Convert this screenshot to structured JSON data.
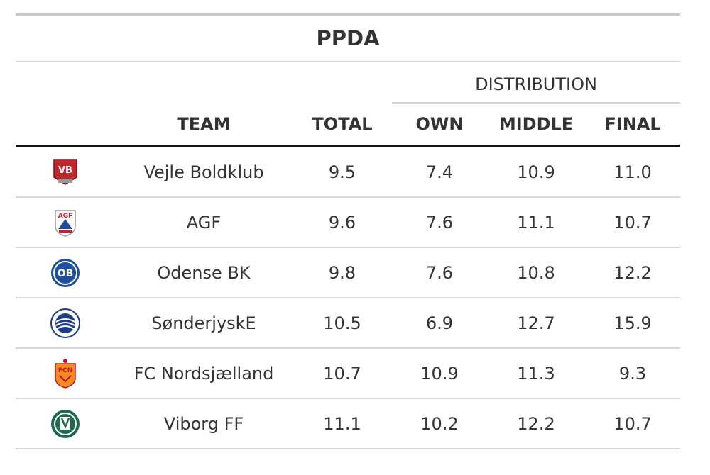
{
  "title": "PPDA",
  "spanner": "DISTRIBUTION",
  "columns": [
    "TEAM",
    "TOTAL",
    "OWN",
    "MIDDLE",
    "FINAL"
  ],
  "rows": [
    {
      "logo": "vejle-crest",
      "team": "Vejle Boldklub",
      "total": "9.5",
      "own": "7.4",
      "middle": "10.9",
      "final": "11.0"
    },
    {
      "logo": "agf-crest",
      "team": "AGF",
      "total": "9.6",
      "own": "7.6",
      "middle": "11.1",
      "final": "10.7"
    },
    {
      "logo": "ob-crest",
      "team": "Odense BK",
      "total": "9.8",
      "own": "7.6",
      "middle": "10.8",
      "final": "12.2"
    },
    {
      "logo": "sonderjyske-crest",
      "team": "SønderjyskE",
      "total": "10.5",
      "own": "6.9",
      "middle": "12.7",
      "final": "15.9"
    },
    {
      "logo": "fcn-crest",
      "team": "FC Nordsjælland",
      "total": "10.7",
      "own": "10.9",
      "middle": "11.3",
      "final": "9.3"
    },
    {
      "logo": "viborg-crest",
      "team": "Viborg FF",
      "total": "11.1",
      "own": "10.2",
      "middle": "12.2",
      "final": "10.7"
    }
  ],
  "crest_text": {
    "vejle": "VB",
    "agf": "AGF",
    "ob": "OB",
    "fcn": "FCN"
  },
  "colors": {
    "vejle": "#c0272d",
    "agf_blue": "#1f4e9a",
    "agf_red": "#d21f2b",
    "ob": "#1e4fa0",
    "sonderjyske": "#1c3d86",
    "fcn": "#f28c1c",
    "fcn_red": "#c8102e",
    "viborg": "#1d6b4c"
  }
}
